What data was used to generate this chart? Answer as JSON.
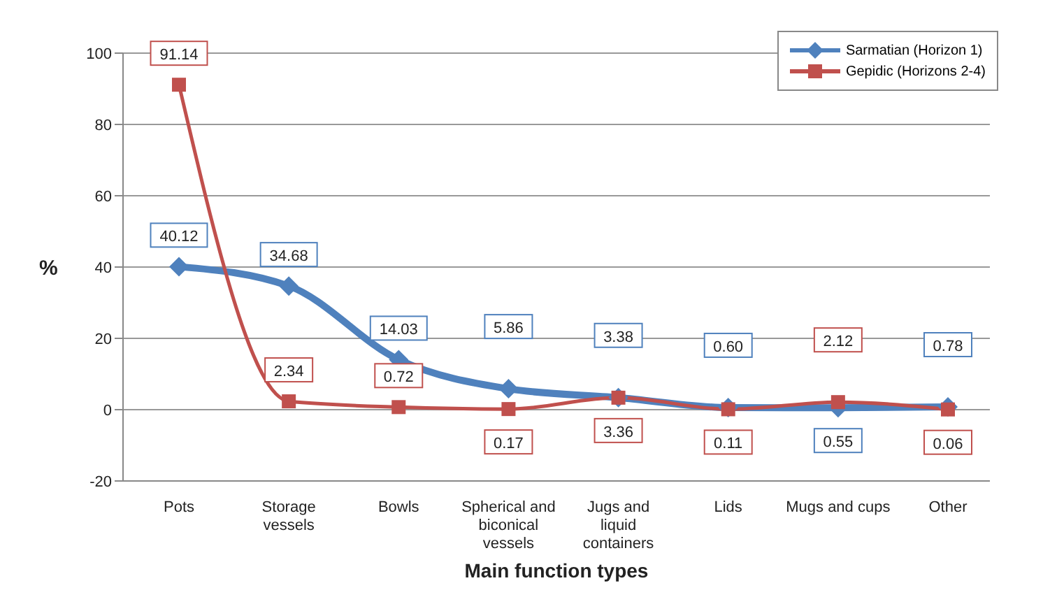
{
  "chart_data": {
    "type": "line",
    "xlabel": "Main function types",
    "ylabel": "%",
    "categories": [
      "Pots",
      "Storage vessels",
      "Bowls",
      "Spherical and biconical vessels",
      "Jugs and liquid containers",
      "Lids",
      "Mugs and cups",
      "Other"
    ],
    "series": [
      {
        "name": "Sarmatian (Horizon 1)",
        "color": "#4f81bd",
        "marker": "diamond",
        "values": [
          40.12,
          34.68,
          14.03,
          5.86,
          3.38,
          0.6,
          0.55,
          0.78
        ],
        "value_labels": [
          "40.12",
          "34.68",
          "14.03",
          "5.86",
          "3.38",
          "0.60",
          "0.55",
          "0.78"
        ]
      },
      {
        "name": "Gepidic (Horizons 2-4)",
        "color": "#c0504d",
        "marker": "square",
        "values": [
          91.14,
          2.34,
          0.72,
          0.17,
          3.36,
          0.11,
          2.12,
          0.06
        ],
        "value_labels": [
          "91.14",
          "2.34",
          "0.72",
          "0.17",
          "3.36",
          "0.11",
          "2.12",
          "0.06"
        ]
      }
    ],
    "ylim": [
      -20,
      100
    ],
    "yticks": [
      -20,
      0,
      20,
      40,
      60,
      80,
      100
    ],
    "grid": "y",
    "legend": "top right"
  }
}
